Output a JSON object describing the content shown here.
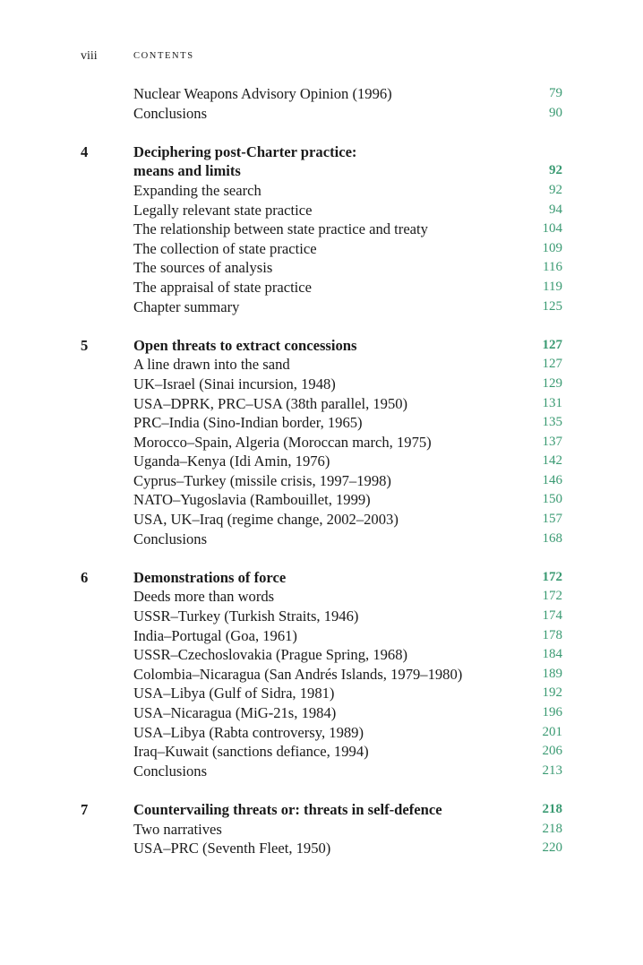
{
  "header": {
    "folio": "viii",
    "running_head": "CONTENTS"
  },
  "accent_color": "#3a9a72",
  "sections": [
    {
      "number": "",
      "title_lines": [],
      "page": "",
      "entries": [
        {
          "title": "Nuclear Weapons Advisory Opinion (1996)",
          "page": "79"
        },
        {
          "title": "Conclusions",
          "page": "90"
        }
      ]
    },
    {
      "number": "4",
      "title_lines": [
        "Deciphering post-Charter practice:",
        "means and limits"
      ],
      "page": "92",
      "entries": [
        {
          "title": "Expanding the search",
          "page": "92"
        },
        {
          "title": "Legally relevant state practice",
          "page": "94"
        },
        {
          "title": "The relationship between state practice and treaty",
          "page": "104"
        },
        {
          "title": "The collection of state practice",
          "page": "109"
        },
        {
          "title": "The sources of analysis",
          "page": "116"
        },
        {
          "title": "The appraisal of state practice",
          "page": "119"
        },
        {
          "title": "Chapter summary",
          "page": "125"
        }
      ]
    },
    {
      "number": "5",
      "title_lines": [
        "Open threats to extract concessions"
      ],
      "page": "127",
      "entries": [
        {
          "title": "A line drawn into the sand",
          "page": "127"
        },
        {
          "title": "UK–Israel (Sinai incursion, 1948)",
          "page": "129"
        },
        {
          "title": "USA–DPRK, PRC–USA (38th parallel, 1950)",
          "page": "131"
        },
        {
          "title": "PRC–India (Sino-Indian border, 1965)",
          "page": "135"
        },
        {
          "title": "Morocco–Spain, Algeria (Moroccan march, 1975)",
          "page": "137"
        },
        {
          "title": "Uganda–Kenya (Idi Amin, 1976)",
          "page": "142"
        },
        {
          "title": "Cyprus–Turkey (missile crisis, 1997–1998)",
          "page": "146"
        },
        {
          "title": "NATO–Yugoslavia (Rambouillet, 1999)",
          "page": "150"
        },
        {
          "title": "USA, UK–Iraq (regime change, 2002–2003)",
          "page": "157"
        },
        {
          "title": "Conclusions",
          "page": "168"
        }
      ]
    },
    {
      "number": "6",
      "title_lines": [
        "Demonstrations of force"
      ],
      "page": "172",
      "entries": [
        {
          "title": "Deeds more than words",
          "page": "172"
        },
        {
          "title": "USSR–Turkey (Turkish Straits, 1946)",
          "page": "174"
        },
        {
          "title": "India–Portugal (Goa, 1961)",
          "page": "178"
        },
        {
          "title": "USSR–Czechoslovakia (Prague Spring, 1968)",
          "page": "184"
        },
        {
          "title": "Colombia–Nicaragua (San Andrés Islands, 1979–1980)",
          "page": "189"
        },
        {
          "title": "USA–Libya (Gulf of Sidra, 1981)",
          "page": "192"
        },
        {
          "title": "USA–Nicaragua (MiG-21s, 1984)",
          "page": "196"
        },
        {
          "title": "USA–Libya (Rabta controversy, 1989)",
          "page": "201"
        },
        {
          "title": "Iraq–Kuwait (sanctions defiance, 1994)",
          "page": "206"
        },
        {
          "title": "Conclusions",
          "page": "213"
        }
      ]
    },
    {
      "number": "7",
      "title_lines": [
        "Countervailing threats or: threats in self-defence"
      ],
      "page": "218",
      "entries": [
        {
          "title": "Two narratives",
          "page": "218"
        },
        {
          "title": "USA–PRC (Seventh Fleet, 1950)",
          "page": "220"
        }
      ]
    }
  ]
}
